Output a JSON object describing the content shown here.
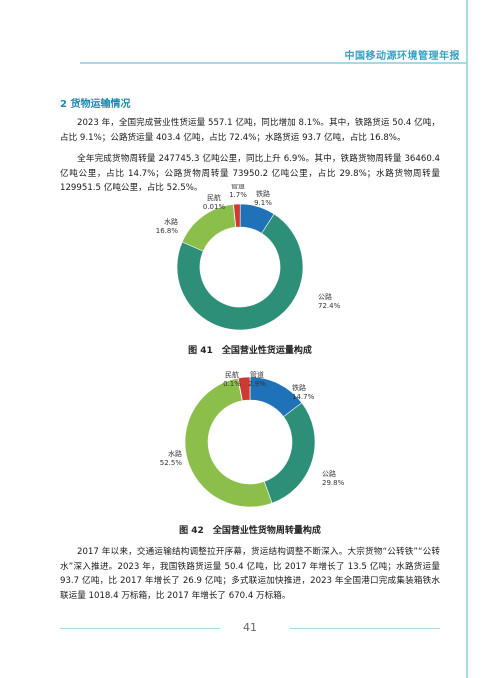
{
  "header": {
    "title": "中国移动源环境管理年报"
  },
  "section": {
    "title": "2 货物运输情况"
  },
  "paragraphs": {
    "p1": "2023 年，全国完成营业性货运量 557.1 亿吨，同比增加 8.1%。其中，铁路货运 50.4 亿吨，占比 9.1%；公路货运量 403.4 亿吨，占比 72.4%；水路货运 93.7 亿吨，占比 16.8%。",
    "p2": "全年完成货物周转量 247745.3 亿吨公里，同比上升 6.9%。其中，铁路货物周转量 36460.4 亿吨公里，占比 14.7%；公路货物周转量 73950.2 亿吨公里，占比 29.8%；水路货物周转量 129951.5 亿吨公里，占比 52.5%。",
    "p3": "2017 年以来，交通运输结构调整拉开序幕，货运结构调整不断深入。大宗货物“公转铁”“公转水”深入推进。2023 年，我国铁路货运量 50.4 亿吨，比 2017 年增长了 13.5 亿吨；水路货运量 93.7 亿吨，比 2017 年增长了 26.9 亿吨；多式联运加快推进，2023 年全国港口完成集装箱铁水联运量 1018.4 万标箱，比 2017 年增长了 670.4 万标箱。"
  },
  "figures": {
    "fig1_caption": "图 41　全国营业性货运量构成",
    "fig2_caption": "图 42　全国营业性货物周转量构成"
  },
  "footer": {
    "page_number": "41"
  },
  "chart_data": [
    {
      "type": "pie",
      "title": "图 41　全国营业性货运量构成",
      "slices": [
        {
          "name": "铁路",
          "value": 9.1,
          "label": "9.1%",
          "color": "#1f72b8"
        },
        {
          "name": "公路",
          "value": 72.4,
          "label": "72.4%",
          "color": "#2e8f78"
        },
        {
          "name": "水路",
          "value": 16.8,
          "label": "16.8%",
          "color": "#8cbf4a"
        },
        {
          "name": "民航",
          "value": 0.01,
          "label": "0.01%",
          "color": "#7a7a7a"
        },
        {
          "name": "管道",
          "value": 1.7,
          "label": "1.7%",
          "color": "#cc3a32"
        }
      ]
    },
    {
      "type": "pie",
      "title": "图 42　全国营业性货物周转量构成",
      "slices": [
        {
          "name": "铁路",
          "value": 14.7,
          "label": "14.7%",
          "color": "#1f72b8"
        },
        {
          "name": "公路",
          "value": 29.8,
          "label": "29.8%",
          "color": "#2e8f78"
        },
        {
          "name": "水路",
          "value": 52.5,
          "label": "52.5%",
          "color": "#8cbf4a"
        },
        {
          "name": "民航",
          "value": 0.1,
          "label": "0.1%",
          "color": "#7a7a7a"
        },
        {
          "name": "管道",
          "value": 2.9,
          "label": "2.9%",
          "color": "#cc3a32"
        }
      ]
    }
  ]
}
